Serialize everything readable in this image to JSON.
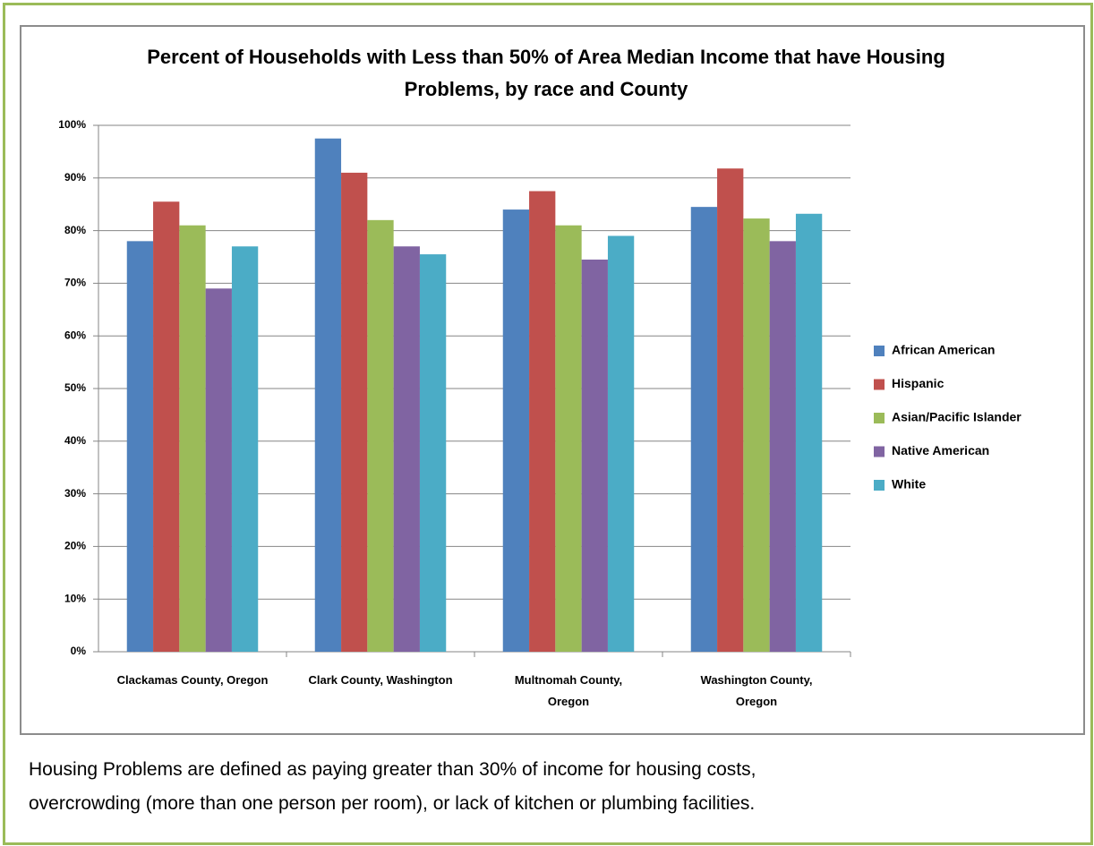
{
  "chart_data": {
    "type": "bar",
    "title": "Percent of Households with Less than 50% of Area Median Income that have Housing Problems, by race and County",
    "categories": [
      "Clackamas County, Oregon",
      "Clark County, Washington",
      "Multnomah County, Oregon",
      "Washington County, Oregon"
    ],
    "series": [
      {
        "name": "African American",
        "color": "#4f81bd",
        "values": [
          78,
          97.5,
          84,
          84.5
        ]
      },
      {
        "name": "Hispanic",
        "color": "#c0504d",
        "values": [
          85.5,
          91,
          87.5,
          91.8
        ]
      },
      {
        "name": "Asian/Pacific Islander",
        "color": "#9bbb59",
        "values": [
          81,
          82,
          81,
          82.3
        ]
      },
      {
        "name": "Native American",
        "color": "#8064a2",
        "values": [
          69,
          77,
          74.5,
          78
        ]
      },
      {
        "name": "White",
        "color": "#4bacc6",
        "values": [
          77,
          75.5,
          79,
          83.2
        ]
      }
    ],
    "ylim": [
      0,
      100
    ],
    "yticks": [
      {
        "value": 0,
        "label": "0%"
      },
      {
        "value": 10,
        "label": "10%"
      },
      {
        "value": 20,
        "label": "20%"
      },
      {
        "value": 30,
        "label": "30%"
      },
      {
        "value": 40,
        "label": "40%"
      },
      {
        "value": 50,
        "label": "50%"
      },
      {
        "value": 60,
        "label": "60%"
      },
      {
        "value": 70,
        "label": "70%"
      },
      {
        "value": 80,
        "label": "80%"
      },
      {
        "value": 90,
        "label": "90%"
      },
      {
        "value": 100,
        "label": "100%"
      }
    ],
    "grid": true,
    "legend": "right"
  },
  "caption": [
    "Housing Problems are defined as paying greater than 30% of income for housing costs,",
    "overcrowding (more than one person per room),  or lack of kitchen or plumbing facilities."
  ]
}
